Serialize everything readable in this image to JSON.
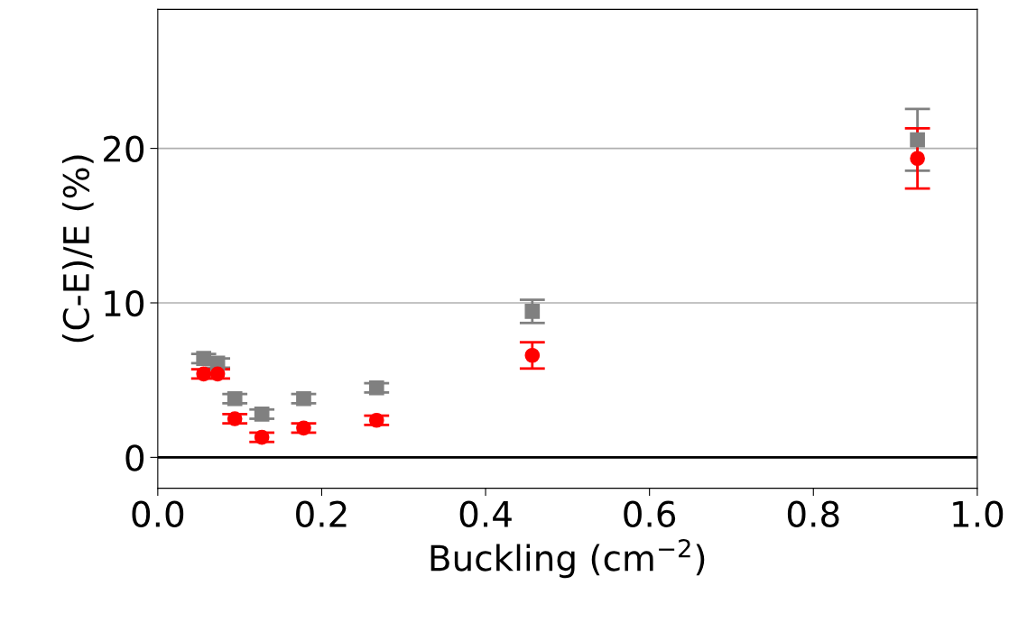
{
  "chart_data": {
    "type": "scatter",
    "xlabel": "Buckling (cm$^{−2}$)",
    "ylabel": "(C-E)/E (%)",
    "x": [
      0.056,
      0.073,
      0.094,
      0.127,
      0.178,
      0.267,
      0.457,
      0.927
    ],
    "series": [
      {
        "color": "#808080",
        "marker": "square",
        "values": [
          6.4,
          6.1,
          3.8,
          2.8,
          3.8,
          4.5,
          9.45,
          20.55
        ],
        "errors": [
          0.3,
          0.3,
          0.3,
          0.3,
          0.3,
          0.3,
          0.75,
          2.0
        ]
      },
      {
        "color": "#ff0000",
        "marker": "circle",
        "values": [
          5.4,
          5.4,
          2.5,
          1.3,
          1.9,
          2.4,
          6.6,
          19.35
        ],
        "errors": [
          0.3,
          0.3,
          0.3,
          0.3,
          0.3,
          0.3,
          0.85,
          1.95
        ]
      }
    ],
    "xlim": [
      0.0,
      1.0
    ],
    "xticks": [
      {
        "value": 0,
        "label": "0.0"
      },
      0.2,
      0.4,
      0.6,
      0.8,
      {
        "value": 1,
        "label": "1.0"
      }
    ],
    "ylim": [
      -2,
      29
    ],
    "yticks": [
      0,
      10,
      20
    ],
    "ref_lines": [
      {
        "axis": "y",
        "value": 0,
        "color": "#000000"
      }
    ],
    "grid": "y"
  }
}
